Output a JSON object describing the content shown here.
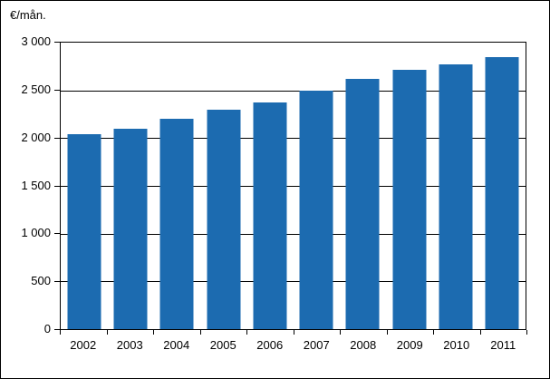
{
  "figure": {
    "unit_label": "€/mån."
  },
  "colors": {
    "bar": "#1C6BB0",
    "axis": "#000000",
    "background": "#FFFFFF",
    "figure_border": "#000000"
  },
  "chart_data": {
    "type": "bar",
    "title": "",
    "xlabel": "",
    "ylabel": "€/mån.",
    "categories": [
      "2002",
      "2003",
      "2004",
      "2005",
      "2006",
      "2007",
      "2008",
      "2009",
      "2010",
      "2011"
    ],
    "values": [
      2040,
      2100,
      2200,
      2300,
      2370,
      2500,
      2620,
      2720,
      2770,
      2850
    ],
    "ylim": [
      0,
      3000
    ],
    "ytick_interval": 500,
    "ytick_values": [
      0,
      500,
      1000,
      1500,
      2000,
      2500,
      3000
    ],
    "ytick_labels": [
      "0",
      "500",
      "1 000",
      "1 500",
      "2 000",
      "2 500",
      "3 000"
    ],
    "grid": "horizontal-black",
    "legend": "none",
    "bar_color": "#1C6BB0"
  }
}
